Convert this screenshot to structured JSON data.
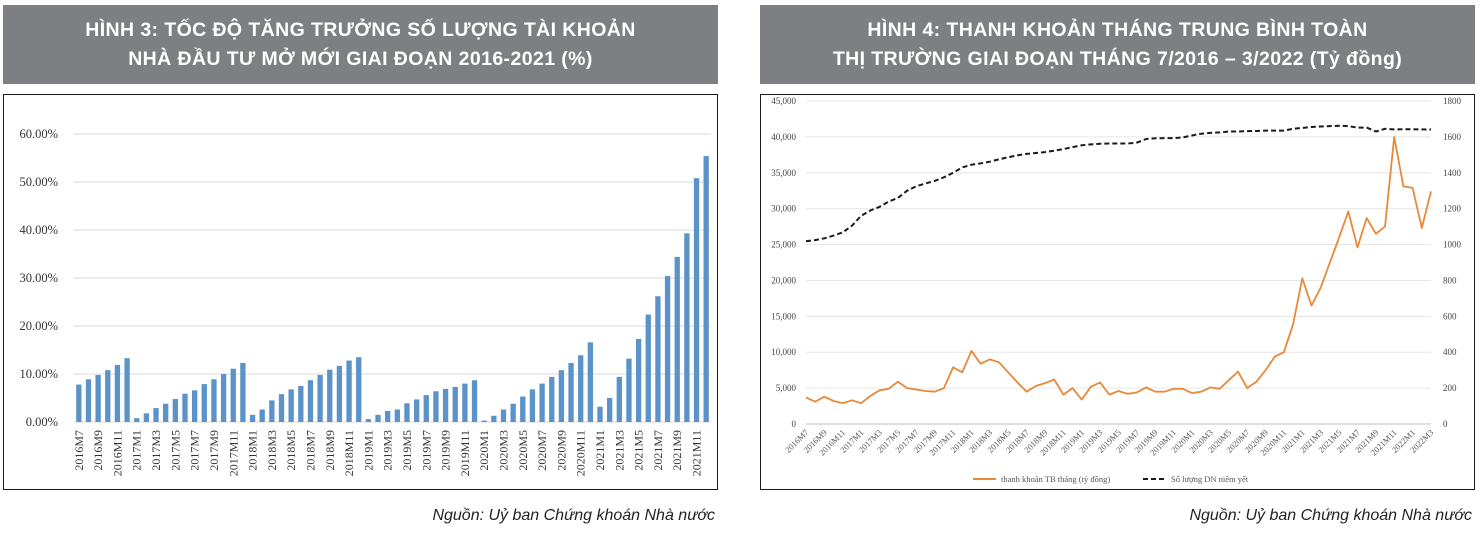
{
  "left": {
    "title_line1": "HÌNH 3: TỐC ĐỘ TĂNG TRƯỞNG SỐ LƯỢNG TÀI KHOẢN",
    "title_line2": "NHÀ ĐẦU TƯ MỞ MỚI GIAI ĐOẠN 2016-2021 (%)",
    "source": "Nguồn: Uỷ ban Chứng khoán Nhà nước"
  },
  "right": {
    "title_line1": "HÌNH 4: THANH KHOẢN THÁNG TRUNG BÌNH TOÀN",
    "title_line2": "THỊ TRƯỜNG GIAI ĐOẠN THÁNG 7/2016 – 3/2022 (Tỷ đồng)",
    "source": "Nguồn: Uỷ ban Chứng khoán Nhà nước"
  },
  "chart_data": [
    {
      "type": "bar",
      "title": "HÌNH 3: TỐC ĐỘ TĂNG TRƯỞNG SỐ LƯỢNG TÀI KHOẢN NHÀ ĐẦU TƯ MỞ MỚI GIAI ĐOẠN 2016-2021 (%)",
      "categories": [
        "2016M7",
        "2016M8",
        "2016M9",
        "2016M10",
        "2016M11",
        "2016M12",
        "2017M1",
        "2017M2",
        "2017M3",
        "2017M4",
        "2017M5",
        "2017M6",
        "2017M7",
        "2017M8",
        "2017M9",
        "2017M10",
        "2017M11",
        "2017M12",
        "2018M1",
        "2018M2",
        "2018M3",
        "2018M4",
        "2018M5",
        "2018M6",
        "2018M7",
        "2018M8",
        "2018M9",
        "2018M10",
        "2018M11",
        "2018M12",
        "2019M1",
        "2019M2",
        "2019M3",
        "2019M4",
        "2019M5",
        "2019M6",
        "2019M7",
        "2019M8",
        "2019M9",
        "2019M10",
        "2019M11",
        "2019M12",
        "2020M1",
        "2020M2",
        "2020M3",
        "2020M4",
        "2020M5",
        "2020M6",
        "2020M7",
        "2020M8",
        "2020M9",
        "2020M10",
        "2020M11",
        "2020M12",
        "2021M1",
        "2021M2",
        "2021M3",
        "2021M4",
        "2021M5",
        "2021M6",
        "2021M7",
        "2021M8",
        "2021M9",
        "2021M10",
        "2021M11",
        "2021M12"
      ],
      "tick_labels": [
        "2016M7",
        "2016M9",
        "2016M11",
        "2017M1",
        "2017M3",
        "2017M5",
        "2017M7",
        "2017M9",
        "2017M11",
        "2018M1",
        "2018M3",
        "2018M5",
        "2018M7",
        "2018M9",
        "2018M11",
        "2019M1",
        "2019M3",
        "2019M5",
        "2019M7",
        "2019M9",
        "2019M11",
        "2020M1",
        "2020M3",
        "2020M5",
        "2020M7",
        "2020M9",
        "2020M11",
        "2021M1",
        "2021M3",
        "2021M5",
        "2021M7",
        "2021M9",
        "2021M11"
      ],
      "values": [
        7.8,
        8.9,
        9.8,
        10.8,
        11.9,
        13.3,
        0.8,
        1.8,
        2.9,
        3.8,
        4.8,
        5.9,
        6.6,
        7.9,
        8.9,
        10.0,
        11.1,
        12.3,
        1.5,
        2.6,
        4.5,
        5.8,
        6.8,
        7.5,
        8.7,
        9.8,
        10.9,
        11.7,
        12.8,
        13.5,
        0.6,
        1.5,
        2.3,
        2.6,
        3.9,
        4.7,
        5.6,
        6.4,
        6.9,
        7.3,
        8.0,
        8.7,
        0.3,
        1.3,
        2.6,
        3.8,
        5.3,
        6.8,
        8.0,
        9.4,
        10.8,
        12.3,
        13.9,
        16.6,
        3.2,
        5.0,
        9.4,
        13.2,
        17.3,
        22.4,
        26.2,
        30.4,
        34.4,
        39.3,
        50.8,
        55.4
      ],
      "yticks": [
        "0.00%",
        "10.00%",
        "20.00%",
        "30.00%",
        "40.00%",
        "50.00%",
        "60.00%"
      ],
      "ylim": [
        0,
        65
      ],
      "grid": true,
      "color": "#5b93c9"
    },
    {
      "type": "line",
      "title": "HÌNH 4: THANH KHOẢN THÁNG TRUNG BÌNH TOÀN THỊ TRƯỜNG GIAI ĐOẠN THÁNG 7/2016 – 3/2022 (Tỷ đồng)",
      "x": [
        "2016M7",
        "2016M8",
        "2016M9",
        "2016M10",
        "2016M11",
        "2016M12",
        "2017M1",
        "2017M2",
        "2017M3",
        "2017M4",
        "2017M5",
        "2017M6",
        "2017M7",
        "2017M8",
        "2017M9",
        "2017M10",
        "2017M11",
        "2017M12",
        "2018M1",
        "2018M2",
        "2018M3",
        "2018M4",
        "2018M5",
        "2018M6",
        "2018M7",
        "2018M8",
        "2018M9",
        "2018M10",
        "2018M11",
        "2018M12",
        "2019M1",
        "2019M2",
        "2019M3",
        "2019M4",
        "2019M5",
        "2019M6",
        "2019M7",
        "2019M8",
        "2019M9",
        "2019M10",
        "2019M11",
        "2019M12",
        "2020M1",
        "2020M2",
        "2020M3",
        "2020M4",
        "2020M5",
        "2020M6",
        "2020M7",
        "2020M8",
        "2020M9",
        "2020M10",
        "2020M11",
        "2020M12",
        "2021M1",
        "2021M2",
        "2021M3",
        "2021M4",
        "2021M5",
        "2021M6",
        "2021M7",
        "2021M8",
        "2021M9",
        "2021M10",
        "2021M11",
        "2021M12",
        "2022M1",
        "2022M2",
        "2022M3"
      ],
      "tick_labels": [
        "2016M7",
        "2016M9",
        "2016M11",
        "2017M1",
        "2017M3",
        "2017M5",
        "2017M7",
        "2017M9",
        "2017M11",
        "2018M1",
        "2018M3",
        "2018M5",
        "2018M7",
        "2018M9",
        "2018M11",
        "2019M1",
        "2019M3",
        "2019M5",
        "2019M7",
        "2019M9",
        "2019M11",
        "2020M1",
        "2020M3",
        "2020M5",
        "2020M7",
        "2020M9",
        "2020M11",
        "2021M1",
        "2021M3",
        "2021M5",
        "2021M7",
        "2021M9",
        "2021M11",
        "2022M1",
        "2022M3"
      ],
      "y_left_ticks": [
        "0",
        "5,000",
        "10,000",
        "15,000",
        "20,000",
        "25,000",
        "30,000",
        "35,000",
        "40,000",
        "45,000"
      ],
      "y_left_lim": [
        0,
        45000
      ],
      "y_right_ticks": [
        "0",
        "200",
        "400",
        "600",
        "800",
        "1000",
        "1200",
        "1400",
        "1600",
        "1800"
      ],
      "y_right_lim": [
        0,
        1800
      ],
      "series": [
        {
          "name": "thanh khoản TB tháng (tỷ đồng)",
          "axis": "left",
          "style": "solid",
          "color": "#e8893a",
          "values": [
            3700,
            3100,
            3800,
            3200,
            2900,
            3300,
            2900,
            3900,
            4700,
            4900,
            5900,
            5000,
            4800,
            4600,
            4500,
            5000,
            7900,
            7200,
            10200,
            8400,
            9000,
            8600,
            7200,
            5800,
            4500,
            5300,
            5700,
            6200,
            4100,
            5000,
            3400,
            5200,
            5800,
            4100,
            4600,
            4200,
            4400,
            5100,
            4500,
            4500,
            4900,
            4900,
            4300,
            4500,
            5100,
            4900,
            6100,
            7300,
            5000,
            5900,
            7500,
            9400,
            10000,
            13900,
            20300,
            16500,
            19000,
            22500,
            26000,
            29600,
            24600,
            28700,
            26500,
            27500,
            40000,
            33100,
            32900,
            27300,
            32400
          ]
        },
        {
          "name": "Số lượng DN niêm yết",
          "axis": "right",
          "style": "dashed",
          "color": "#1a1a1a",
          "values": [
            1018,
            1025,
            1035,
            1050,
            1068,
            1105,
            1160,
            1190,
            1210,
            1240,
            1260,
            1300,
            1325,
            1340,
            1355,
            1375,
            1400,
            1430,
            1445,
            1452,
            1462,
            1475,
            1487,
            1497,
            1505,
            1510,
            1515,
            1523,
            1532,
            1543,
            1553,
            1558,
            1562,
            1563,
            1563,
            1563,
            1568,
            1588,
            1592,
            1593,
            1593,
            1597,
            1608,
            1618,
            1622,
            1625,
            1630,
            1630,
            1632,
            1633,
            1635,
            1635,
            1635,
            1645,
            1650,
            1655,
            1658,
            1660,
            1662,
            1660,
            1652,
            1652,
            1630,
            1645,
            1642,
            1643,
            1643,
            1642,
            1641
          ]
        }
      ],
      "legend": "bottom",
      "grid": true
    }
  ]
}
